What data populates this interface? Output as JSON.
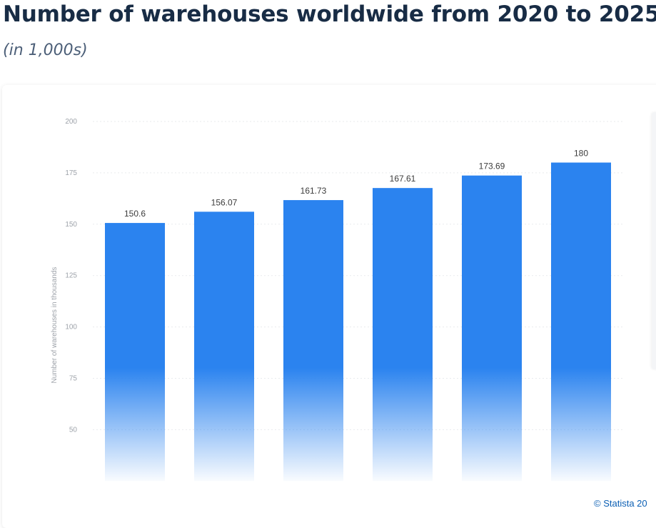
{
  "title": "Number of warehouses worldwide from 2020 to 2025",
  "subtitle": "(in 1,000s)",
  "credit": "© Statista 20",
  "colors": {
    "bar": "#2b83ef",
    "title": "#182c45",
    "subtitle": "#4c5f78",
    "tick": "#9ea3aa",
    "value_label": "#3c3c3c",
    "credit": "#0b5fb4"
  },
  "chart_data": {
    "type": "bar",
    "categories": [
      "",
      "",
      "",
      "",
      "",
      ""
    ],
    "values": [
      150.6,
      156.07,
      161.73,
      167.61,
      173.69,
      180
    ],
    "value_labels": [
      "150.6",
      "156.07",
      "161.73",
      "167.61",
      "173.69",
      "180"
    ],
    "ylabel": "Number of warehouses in thousands",
    "yticks": [
      50,
      75,
      100,
      125,
      150,
      175,
      200
    ],
    "ytick_labels": [
      "50",
      "75",
      "100",
      "125",
      "150",
      "175",
      "200"
    ],
    "ylim": [
      25,
      200
    ],
    "grid": true,
    "legend": "none"
  }
}
